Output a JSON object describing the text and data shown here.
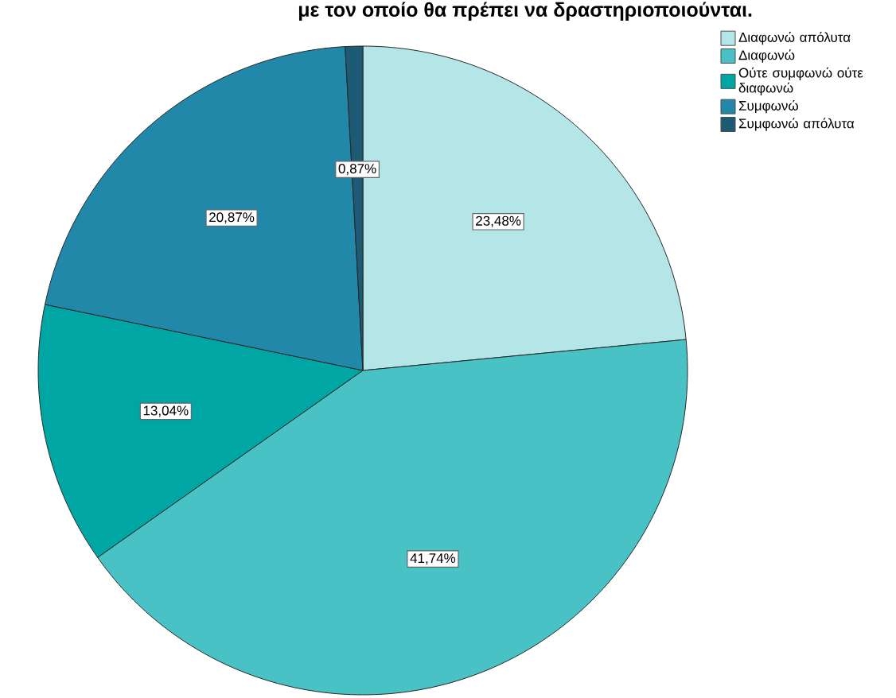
{
  "chart_data": {
    "type": "pie",
    "title": "με τον οποίο θα πρέπει να δραστηριοποιούνται.",
    "categories": [
      "Διαφωνώ απόλυτα",
      "Διαφωνώ",
      "Ούτε συμφωνώ ούτε διαφωνώ",
      "Συμφωνώ",
      "Συμφωνώ απόλυτα"
    ],
    "values": [
      23.48,
      41.74,
      13.04,
      20.87,
      0.87
    ],
    "colors": [
      "#b4e6e8",
      "#48c2c5",
      "#00a6a3",
      "#2288a9",
      "#1c5b73"
    ],
    "value_labels": [
      "23,48%",
      "41,74%",
      "13,04%",
      "20,87%",
      "0,87%"
    ],
    "legend": "top right"
  }
}
